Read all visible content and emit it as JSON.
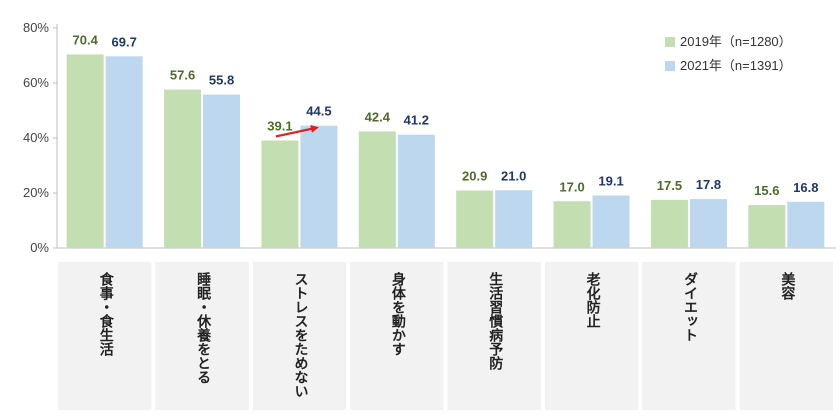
{
  "chart_data": {
    "type": "bar",
    "categories": [
      "食事・食生活",
      "睡眠・休養をとる",
      "ストレスをためない",
      "身体を動かす",
      "生活習慣病予防",
      "老化防止",
      "ダイエット",
      "美容"
    ],
    "series": [
      {
        "name": "2019年（n=1280）",
        "values": [
          70.4,
          57.6,
          39.1,
          42.4,
          20.9,
          17.0,
          17.5,
          15.6
        ],
        "color": "#c3deb0",
        "label_color": "#4e6b2c"
      },
      {
        "name": "2021年（n=1391）",
        "values": [
          69.7,
          55.8,
          44.5,
          41.2,
          21.0,
          19.1,
          17.8,
          16.8
        ],
        "color": "#bdd7ee",
        "label_color": "#1f3864"
      }
    ],
    "yticks": [
      "0%",
      "20%",
      "40%",
      "60%",
      "80%"
    ],
    "ylim": [
      0,
      80
    ],
    "legend_position": "top-right",
    "annotation": {
      "type": "arrow",
      "category": "ストレスをためない",
      "color": "#e02020"
    },
    "category_box_color": "#f2f2f2",
    "grid": false
  }
}
